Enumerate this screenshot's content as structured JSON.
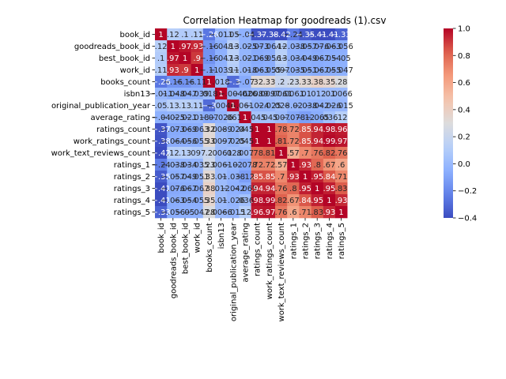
{
  "chart_data": {
    "type": "heatmap",
    "title": "Correlation Heatmap for goodreads (1).csv",
    "xlabel": "",
    "ylabel": "",
    "colormap": "coolwarm",
    "vmin": -0.4,
    "vmax": 1.0,
    "colorbar_ticks": [
      "1.0",
      "0.8",
      "0.6",
      "0.4",
      "0.2",
      "0.0",
      "−0.2",
      "−0.4"
    ],
    "colorbar_tick_values": [
      1.0,
      0.8,
      0.6,
      0.4,
      0.2,
      0.0,
      -0.2,
      -0.4
    ],
    "labels": [
      "book_id",
      "goodreads_book_id",
      "best_book_id",
      "work_id",
      "books_count",
      "isbn13",
      "original_publication_year",
      "average_rating",
      "ratings_count",
      "work_ratings_count",
      "work_text_reviews_count",
      "ratings_1",
      "ratings_2",
      "ratings_3",
      "ratings_4",
      "ratings_5"
    ],
    "matrix": [
      [
        1,
        0.12,
        0.1,
        0.11,
        -0.26,
        -0.011,
        0.05,
        -0.04,
        -0.37,
        -0.38,
        -0.42,
        -0.24,
        -0.35,
        -0.41,
        -0.41,
        -0.33
      ],
      [
        0.12,
        1,
        0.97,
        0.93,
        -0.16,
        -0.048,
        0.13,
        -0.025,
        -0.073,
        -0.064,
        0.12,
        -0.038,
        -0.057,
        -0.076,
        -0.063,
        -0.056
      ],
      [
        0.1,
        0.97,
        1,
        0.9,
        -0.16,
        -0.047,
        0.13,
        -0.021,
        -0.069,
        -0.056,
        0.13,
        -0.034,
        -0.049,
        -0.067,
        -0.054,
        -0.05
      ],
      [
        0.11,
        0.93,
        0.9,
        1,
        -0.11,
        -0.039,
        0.11,
        -0.018,
        -0.063,
        -0.055,
        0.097,
        -0.035,
        -0.051,
        -0.067,
        -0.055,
        -0.047
      ],
      [
        -0.26,
        -0.16,
        -0.16,
        -0.11,
        1,
        0.018,
        -0.3,
        -0.07,
        0.32,
        0.33,
        0.2,
        0.23,
        0.33,
        0.38,
        0.35,
        0.28
      ],
      [
        -0.011,
        -0.048,
        -0.047,
        -0.039,
        0.018,
        1,
        -0.0046,
        -0.026,
        0.0089,
        0.0097,
        0.0061,
        0.0061,
        0.01,
        0.012,
        0.01,
        0.0066
      ],
      [
        0.05,
        0.13,
        0.13,
        0.11,
        -0.3,
        -0.0046,
        1,
        0.061,
        -0.024,
        -0.025,
        0.028,
        -0.02,
        -0.038,
        -0.042,
        -0.026,
        -0.015
      ],
      [
        -0.04,
        -0.025,
        -0.021,
        -0.018,
        -0.07,
        -0.026,
        0.061,
        1,
        0.045,
        0.045,
        0.007,
        -0.078,
        -0.12,
        -0.065,
        0.036,
        0.12
      ],
      [
        -0.37,
        -0.073,
        -0.069,
        -0.063,
        0.32,
        0.0089,
        -0.024,
        0.045,
        1,
        1,
        0.78,
        0.72,
        0.85,
        0.94,
        0.98,
        0.96
      ],
      [
        -0.38,
        -0.064,
        -0.056,
        -0.055,
        0.33,
        0.0097,
        -0.025,
        0.045,
        1,
        1,
        0.81,
        0.72,
        0.85,
        0.94,
        0.99,
        0.97
      ],
      [
        -0.42,
        0.12,
        0.13,
        0.097,
        0.2,
        0.0061,
        0.028,
        0.007,
        0.78,
        0.81,
        1,
        0.57,
        0.7,
        0.76,
        0.82,
        0.76
      ],
      [
        -0.24,
        -0.038,
        -0.034,
        -0.035,
        0.23,
        0.0061,
        -0.02,
        -0.078,
        0.72,
        0.72,
        0.57,
        1,
        0.93,
        0.8,
        0.67,
        0.6
      ],
      [
        -0.35,
        -0.057,
        -0.049,
        -0.051,
        0.33,
        0.01,
        -0.038,
        -0.12,
        0.85,
        0.85,
        0.7,
        0.93,
        1,
        0.95,
        0.84,
        0.71
      ],
      [
        -0.41,
        -0.076,
        -0.067,
        -0.067,
        0.38,
        0.012,
        -0.042,
        -0.065,
        0.94,
        0.94,
        0.76,
        0.8,
        0.95,
        1,
        0.95,
        0.83
      ],
      [
        -0.41,
        -0.063,
        -0.054,
        -0.055,
        0.35,
        0.01,
        -0.026,
        0.036,
        0.98,
        0.99,
        0.82,
        0.67,
        0.84,
        0.95,
        1,
        0.93
      ],
      [
        -0.33,
        -0.056,
        -0.05,
        -0.047,
        0.28,
        0.0066,
        -0.015,
        0.12,
        0.96,
        0.97,
        0.76,
        0.6,
        0.71,
        0.83,
        0.93,
        1
      ]
    ]
  }
}
